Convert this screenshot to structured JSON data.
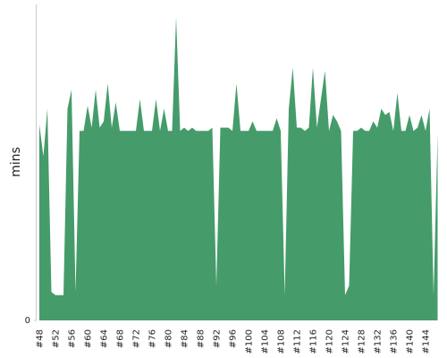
{
  "chart_data": {
    "type": "area",
    "y_label": "mins",
    "color": "#459c6a",
    "categories": [
      "#48",
      null,
      null,
      null,
      "#52",
      null,
      null,
      null,
      "#56",
      null,
      null,
      null,
      "#60",
      null,
      null,
      null,
      "#64",
      null,
      null,
      null,
      "#68",
      null,
      null,
      null,
      "#72",
      null,
      null,
      null,
      "#76",
      null,
      null,
      null,
      "#80",
      null,
      null,
      null,
      "#84",
      null,
      null,
      null,
      "#88",
      null,
      null,
      null,
      "#92",
      null,
      null,
      null,
      "#96",
      null,
      null,
      null,
      "#100",
      null,
      null,
      null,
      "#104",
      null,
      null,
      null,
      "#108",
      null,
      null,
      null,
      "#112",
      null,
      null,
      null,
      "#116",
      null,
      null,
      null,
      "#120",
      null,
      null,
      null,
      "#124",
      null,
      null,
      null,
      "#128",
      null,
      null,
      null,
      "#132",
      null,
      null,
      null,
      "#136",
      null,
      null,
      null,
      "#140",
      null,
      null,
      null,
      "#144",
      null,
      null,
      null
    ],
    "values": [
      62,
      52,
      67,
      9,
      8,
      8,
      8,
      67,
      73,
      9,
      60,
      60,
      68,
      61,
      73,
      61,
      63,
      75,
      61,
      69,
      60,
      60,
      60,
      60,
      60,
      70,
      60,
      60,
      60,
      70,
      60,
      67,
      60,
      60,
      96,
      60,
      61,
      60,
      61,
      60,
      60,
      60,
      60,
      61,
      11,
      61,
      61,
      61,
      60,
      75,
      60,
      60,
      60,
      63,
      60,
      60,
      60,
      60,
      60,
      64,
      60,
      8,
      67,
      80,
      61,
      61,
      60,
      61,
      80,
      61,
      70,
      79,
      60,
      65,
      63,
      60,
      8,
      11,
      60,
      60,
      61,
      60,
      60,
      63,
      61,
      67,
      65,
      66,
      60,
      72,
      60,
      60,
      65,
      60,
      61,
      65,
      60,
      67,
      8,
      59
    ],
    "ylim": [
      0,
      100
    ],
    "yticks": [
      0
    ]
  }
}
